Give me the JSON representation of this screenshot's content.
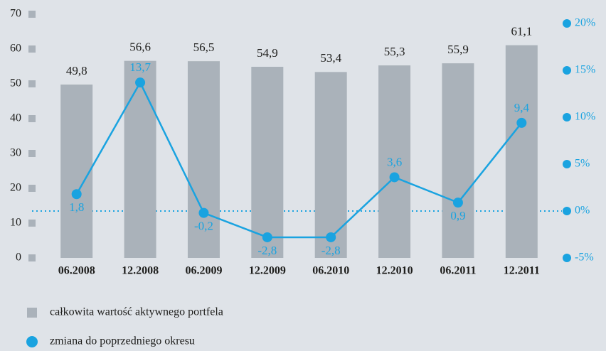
{
  "chart_data": {
    "type": "bar-line",
    "categories": [
      "06.2008",
      "12.2008",
      "06.2009",
      "12.2009",
      "06.2010",
      "12.2010",
      "06.2011",
      "12.2011"
    ],
    "series": [
      {
        "name": "całkowita wartość aktywnego portfela",
        "color": "#aab2ba",
        "values": [
          49.8,
          56.6,
          56.5,
          54.9,
          53.4,
          55.3,
          55.9,
          61.1
        ],
        "value_labels": [
          "49,8",
          "56,6",
          "56,5",
          "54,9",
          "53,4",
          "55,3",
          "55,9",
          "61,1"
        ]
      },
      {
        "name": "zmiana do poprzedniego okresu",
        "color": "#1aa3e0",
        "axis": "y2",
        "values": [
          1.8,
          13.7,
          -0.2,
          -2.8,
          -2.8,
          3.6,
          0.9,
          9.4
        ],
        "value_labels": [
          "1,8",
          "13,7",
          "-0,2",
          "-2,8",
          "-2,8",
          "3,6",
          "0,9",
          "9,4"
        ]
      }
    ],
    "ylim": [
      0,
      70
    ],
    "yticks": [
      0,
      10,
      20,
      30,
      40,
      50,
      60,
      70
    ],
    "y2lim": [
      -5,
      20
    ],
    "y2ticks": [
      {
        "value": -5,
        "label": "-5%"
      },
      {
        "value": 0,
        "label": "0%"
      },
      {
        "value": 5,
        "label": "5%"
      },
      {
        "value": 10,
        "label": "10%"
      },
      {
        "value": 15,
        "label": "15%"
      },
      {
        "value": 20,
        "label": "20%"
      }
    ]
  }
}
